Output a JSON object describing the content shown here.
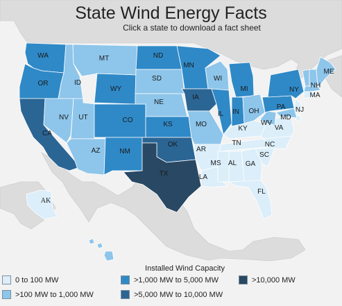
{
  "header": {
    "title": "State Wind Energy Facts",
    "subtitle": "Click a state to download a fact sheet"
  },
  "colors": {
    "ocean": "#f2f2f2",
    "land": "#dcdcdc",
    "tier0": "#dbeef9",
    "tier1": "#8ec5ea",
    "tier2": "#2f89c7",
    "tier3": "#2b6594",
    "tier4": "#284864"
  },
  "legend": {
    "title": "Installed Wind Capacity",
    "items": [
      {
        "label": "0 to 100 MW",
        "tier": "tier0"
      },
      {
        "label": ">100 MW to 1,000 MW",
        "tier": "tier1"
      },
      {
        "label": ">1,000 MW to 5,000 MW",
        "tier": "tier2"
      },
      {
        "label": ">5,000 MW to 10,000 MW",
        "tier": "tier3"
      },
      {
        "label": ">10,000 MW",
        "tier": "tier4"
      }
    ]
  },
  "states": {
    "WA": {
      "label": "WA",
      "tier": "tier2"
    },
    "OR": {
      "label": "OR",
      "tier": "tier2"
    },
    "CA": {
      "label": "CA",
      "tier": "tier3"
    },
    "ID": {
      "label": "ID",
      "tier": "tier1"
    },
    "NV": {
      "label": "NV",
      "tier": "tier1"
    },
    "MT": {
      "label": "MT",
      "tier": "tier1"
    },
    "WY": {
      "label": "WY",
      "tier": "tier2"
    },
    "UT": {
      "label": "UT",
      "tier": "tier1"
    },
    "AZ": {
      "label": "AZ",
      "tier": "tier1"
    },
    "CO": {
      "label": "CO",
      "tier": "tier2"
    },
    "NM": {
      "label": "NM",
      "tier": "tier2"
    },
    "ND": {
      "label": "ND",
      "tier": "tier2"
    },
    "SD": {
      "label": "SD",
      "tier": "tier1"
    },
    "NE": {
      "label": "NE",
      "tier": "tier1"
    },
    "KS": {
      "label": "KS",
      "tier": "tier2"
    },
    "OK": {
      "label": "OK",
      "tier": "tier3"
    },
    "TX": {
      "label": "TX",
      "tier": "tier4"
    },
    "MN": {
      "label": "MN",
      "tier": "tier2"
    },
    "IA": {
      "label": "IA",
      "tier": "tier3"
    },
    "MO": {
      "label": "MO",
      "tier": "tier1"
    },
    "AR": {
      "label": "AR",
      "tier": "tier0"
    },
    "LA": {
      "label": "LA",
      "tier": "tier0"
    },
    "WI": {
      "label": "WI",
      "tier": "tier1"
    },
    "IL": {
      "label": "IL",
      "tier": "tier2"
    },
    "MI": {
      "label": "MI",
      "tier": "tier2"
    },
    "IN": {
      "label": "IN",
      "tier": "tier2"
    },
    "OH": {
      "label": "OH",
      "tier": "tier1"
    },
    "KY": {
      "label": "KY",
      "tier": "tier0"
    },
    "TN": {
      "label": "TN",
      "tier": "tier0"
    },
    "MS": {
      "label": "MS",
      "tier": "tier0"
    },
    "AL": {
      "label": "AL",
      "tier": "tier0"
    },
    "GA": {
      "label": "GA",
      "tier": "tier0"
    },
    "FL": {
      "label": "FL",
      "tier": "tier0"
    },
    "SC": {
      "label": "SC",
      "tier": "tier0"
    },
    "NC": {
      "label": "NC",
      "tier": "tier0"
    },
    "VA": {
      "label": "VA",
      "tier": "tier0"
    },
    "WV": {
      "label": "WV",
      "tier": "tier1"
    },
    "PA": {
      "label": "PA",
      "tier": "tier2"
    },
    "NY": {
      "label": "NY",
      "tier": "tier2"
    },
    "MD": {
      "label": "MD",
      "tier": "tier1"
    },
    "NJ": {
      "label": "NJ",
      "tier": "tier0"
    },
    "DE": {
      "label": "",
      "tier": "tier0"
    },
    "CT": {
      "label": "",
      "tier": "tier0"
    },
    "RI": {
      "label": "",
      "tier": "tier0"
    },
    "MA": {
      "label": "MA",
      "tier": "tier1"
    },
    "VT": {
      "label": "",
      "tier": "tier1"
    },
    "NH": {
      "label": "NH",
      "tier": "tier1"
    },
    "ME": {
      "label": "ME",
      "tier": "tier1"
    },
    "AK": {
      "label": "AK",
      "tier": "tier0"
    },
    "HI": {
      "label": "",
      "tier": "tier1"
    }
  }
}
